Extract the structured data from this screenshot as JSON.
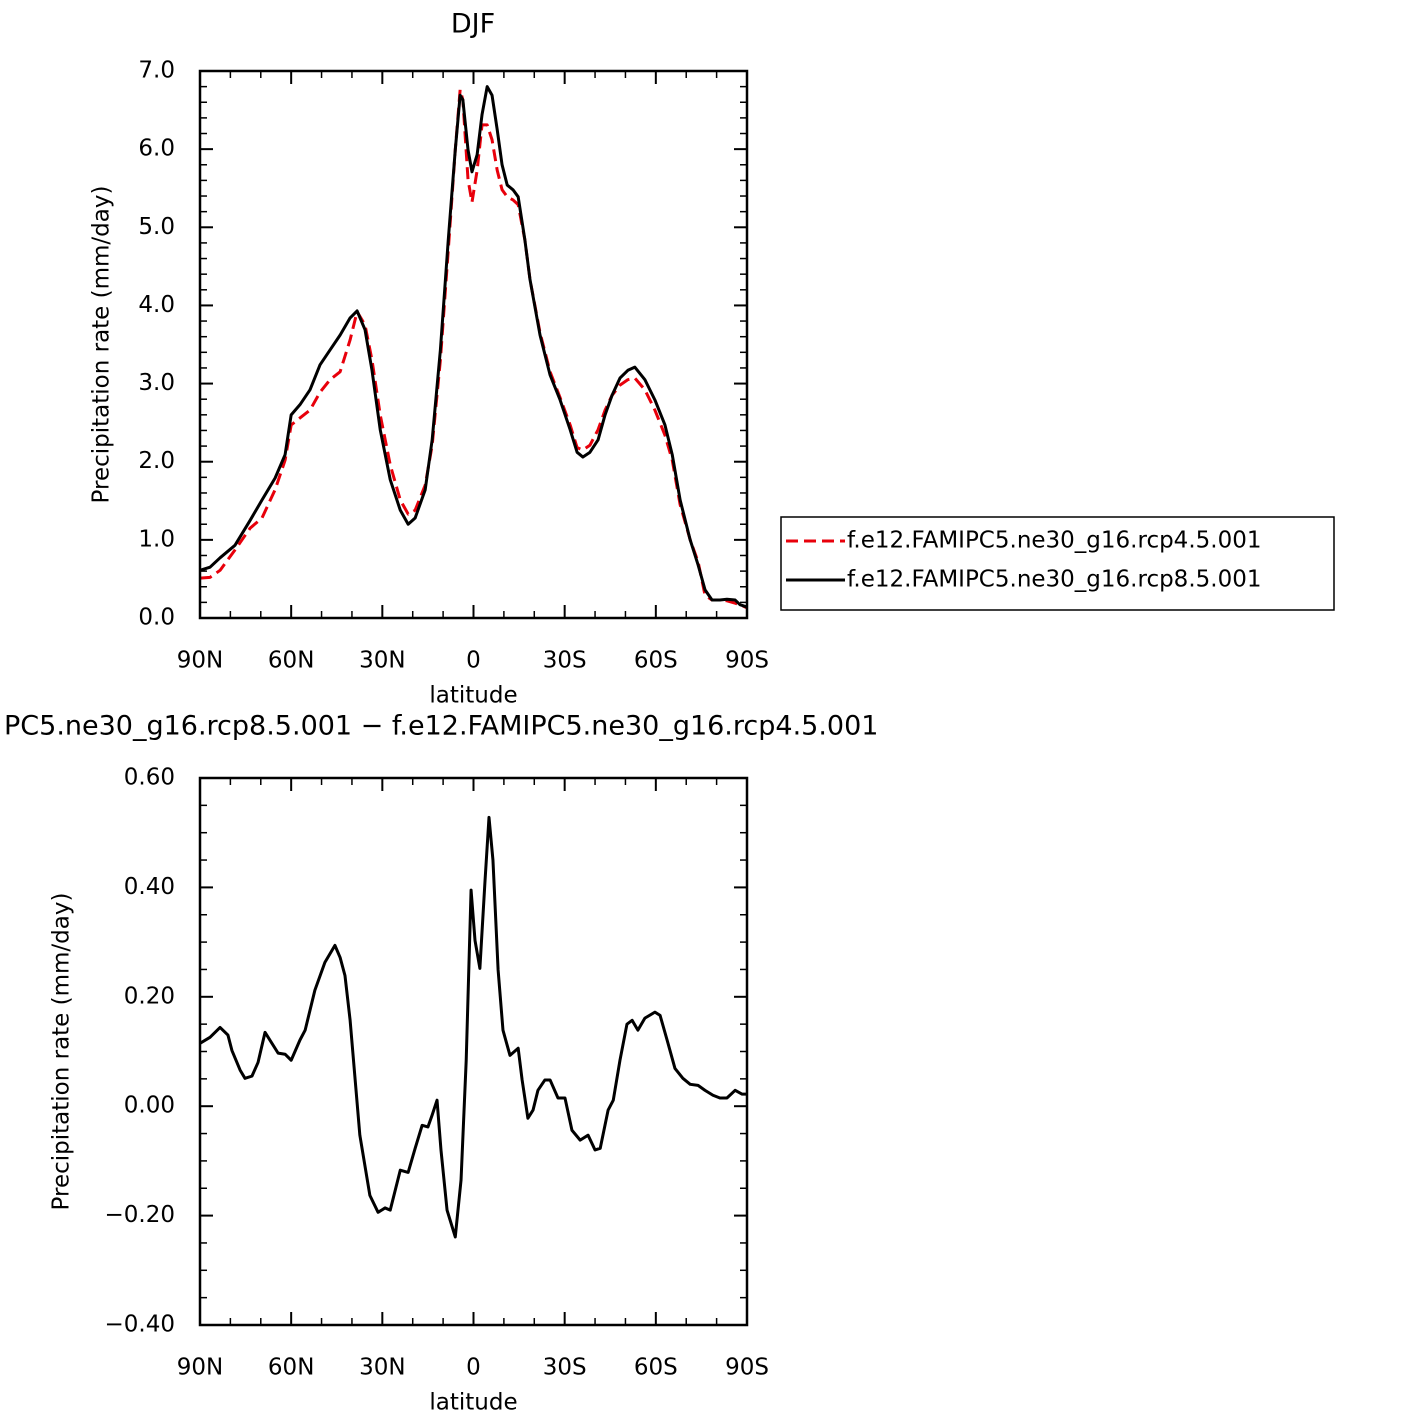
{
  "chart_data": [
    {
      "type": "line",
      "title": "DJF",
      "xlabel": "latitude",
      "ylabel": "Precipitation rate (mm/day)",
      "x": [
        90,
        86.7,
        83.4,
        78.5,
        73.5,
        69.6,
        65.3,
        62.0,
        60.0,
        57.1,
        53.8,
        50.5,
        47.2,
        43.9,
        40.6,
        38.3,
        35.7,
        33.4,
        30.7,
        27.4,
        24.1,
        21.5,
        19.2,
        15.9,
        13.6,
        10.9,
        8.3,
        6.0,
        4.4,
        3.5,
        1.8,
        0.5,
        -1.2,
        -2.8,
        -4.5,
        -6.1,
        -7.8,
        -9.4,
        -11.1,
        -13.0,
        -14.7,
        -16.9,
        -18.6,
        -21.9,
        -25.2,
        -28.5,
        -31.8,
        -34.1,
        -36.0,
        -38.3,
        -41.0,
        -43.3,
        -45.6,
        -48.2,
        -50.8,
        -53.1,
        -56.4,
        -59.7,
        -63.0,
        -65.4,
        -68.0,
        -71.3,
        -73.9,
        -76.2,
        -78.5,
        -81.1,
        -83.4,
        -86.1,
        -87.7,
        -90
      ],
      "series": [
        {
          "name": "f.e12.FAMIPC5.ne30_g16.rcp4.5.001",
          "color": "#e8000b",
          "linestyle": "dashed",
          "values": [
            0.51,
            0.52,
            0.61,
            0.87,
            1.15,
            1.28,
            1.64,
            2.02,
            2.47,
            2.56,
            2.66,
            2.89,
            3.05,
            3.15,
            3.56,
            3.92,
            3.75,
            3.3,
            2.6,
            1.96,
            1.51,
            1.33,
            1.38,
            1.7,
            2.21,
            3.3,
            4.71,
            5.99,
            6.76,
            6.63,
            5.61,
            5.32,
            5.73,
            6.31,
            6.31,
            6.12,
            5.73,
            5.48,
            5.39,
            5.35,
            5.29,
            4.84,
            4.33,
            3.65,
            3.15,
            2.82,
            2.47,
            2.18,
            2.15,
            2.21,
            2.41,
            2.66,
            2.85,
            2.98,
            3.05,
            3.07,
            2.92,
            2.66,
            2.34,
            2.02,
            1.45,
            1.0,
            0.72,
            0.29,
            0.23,
            0.23,
            0.22,
            0.19,
            0.17,
            0.13
          ]
        },
        {
          "name": "f.e12.FAMIPC5.ne30_g16.rcp8.5.001",
          "color": "#000000",
          "linestyle": "solid",
          "values": [
            0.61,
            0.65,
            0.77,
            0.93,
            1.25,
            1.51,
            1.79,
            2.09,
            2.6,
            2.73,
            2.92,
            3.24,
            3.43,
            3.62,
            3.84,
            3.93,
            3.69,
            3.17,
            2.41,
            1.77,
            1.38,
            1.2,
            1.28,
            1.64,
            2.28,
            3.43,
            4.84,
            5.99,
            6.69,
            6.63,
            5.99,
            5.71,
            5.93,
            6.44,
            6.8,
            6.69,
            6.25,
            5.8,
            5.54,
            5.48,
            5.39,
            4.84,
            4.33,
            3.62,
            3.11,
            2.79,
            2.41,
            2.12,
            2.06,
            2.12,
            2.28,
            2.6,
            2.85,
            3.07,
            3.17,
            3.21,
            3.05,
            2.79,
            2.47,
            2.09,
            1.51,
            1.0,
            0.68,
            0.36,
            0.23,
            0.23,
            0.24,
            0.23,
            0.17,
            0.14
          ]
        }
      ],
      "legend": "right",
      "xlim": [
        90,
        -90
      ],
      "xticks": [
        {
          "value": 90,
          "label": "90N"
        },
        {
          "value": 60,
          "label": "60N"
        },
        {
          "value": 30,
          "label": "30N"
        },
        0,
        {
          "value": -30,
          "label": "30S"
        },
        {
          "value": -60,
          "label": "60S"
        },
        {
          "value": -90,
          "label": "90S"
        }
      ],
      "xminorticks": [
        80,
        70,
        50,
        40,
        20,
        10,
        -10,
        -20,
        -40,
        -50,
        -70,
        -80
      ],
      "ylim": [
        0,
        7
      ],
      "yticks": [
        {
          "value": 0,
          "label": "0.0"
        },
        {
          "value": 1,
          "label": "1.0"
        },
        {
          "value": 2,
          "label": "2.0"
        },
        {
          "value": 3,
          "label": "3.0"
        },
        {
          "value": 4,
          "label": "4.0"
        },
        {
          "value": 5,
          "label": "5.0"
        },
        {
          "value": 6,
          "label": "6.0"
        },
        {
          "value": 7,
          "label": "7.0"
        }
      ],
      "yminorticks": [
        0.2,
        0.4,
        0.6,
        0.8,
        1.2,
        1.4,
        1.6,
        1.8,
        2.2,
        2.4,
        2.6,
        2.8,
        3.2,
        3.4,
        3.6,
        3.8,
        4.2,
        4.4,
        4.6,
        4.8,
        5.2,
        5.4,
        5.6,
        5.8,
        6.2,
        6.4,
        6.6,
        6.8
      ]
    },
    {
      "type": "line",
      "title": "PC5.ne30_g16.rcp8.5.001 − f.e12.FAMIPC5.ne30_g16.rcp4.5.001",
      "xlabel": "latitude",
      "ylabel": "Precipitation rate (mm/day)",
      "x": [
        90,
        86.7,
        83.4,
        80.8,
        79.5,
        76.8,
        75.2,
        72.9,
        70.9,
        68.6,
        67.0,
        64.3,
        62.0,
        60.0,
        57.1,
        55.4,
        52.2,
        48.9,
        45.6,
        43.9,
        42.3,
        40.6,
        37.4,
        34.1,
        31.4,
        29.1,
        27.4,
        24.1,
        21.5,
        19.2,
        16.9,
        15.0,
        13.6,
        12.0,
        10.7,
        8.7,
        6.0,
        4.1,
        2.4,
        0.8,
        -0.5,
        -2.1,
        -3.8,
        -5.1,
        -6.4,
        -8.1,
        -9.7,
        -12.0,
        -14.7,
        -16.0,
        -17.9,
        -19.6,
        -21.2,
        -23.5,
        -25.2,
        -27.8,
        -30.1,
        -32.4,
        -35.1,
        -37.7,
        -40.0,
        -41.7,
        -44.3,
        -46.0,
        -48.2,
        -50.5,
        -52.2,
        -54.1,
        -56.4,
        -59.7,
        -61.4,
        -63.7,
        -66.3,
        -68.9,
        -71.3,
        -73.9,
        -76.2,
        -78.8,
        -81.1,
        -83.4,
        -86.1,
        -88.4,
        -90
      ],
      "series": [
        {
          "color": "#000000",
          "linestyle": "solid",
          "values": [
            0.115,
            0.126,
            0.144,
            0.13,
            0.102,
            0.066,
            0.051,
            0.055,
            0.08,
            0.135,
            0.121,
            0.097,
            0.095,
            0.084,
            0.121,
            0.139,
            0.212,
            0.263,
            0.294,
            0.272,
            0.239,
            0.157,
            -0.053,
            -0.163,
            -0.194,
            -0.186,
            -0.19,
            -0.117,
            -0.121,
            -0.077,
            -0.035,
            -0.038,
            -0.016,
            0.011,
            -0.08,
            -0.19,
            -0.239,
            -0.135,
            0.084,
            0.395,
            0.303,
            0.252,
            0.413,
            0.528,
            0.45,
            0.249,
            0.139,
            0.093,
            0.106,
            0.048,
            -0.022,
            -0.007,
            0.029,
            0.048,
            0.048,
            0.015,
            0.015,
            -0.044,
            -0.062,
            -0.053,
            -0.08,
            -0.077,
            -0.007,
            0.011,
            0.084,
            0.15,
            0.157,
            0.139,
            0.161,
            0.172,
            0.166,
            0.121,
            0.069,
            0.051,
            0.04,
            0.038,
            0.029,
            0.02,
            0.015,
            0.015,
            0.029,
            0.022,
            0.022
          ]
        }
      ],
      "xlim": [
        90,
        -90
      ],
      "xticks": [
        {
          "value": 90,
          "label": "90N"
        },
        {
          "value": 60,
          "label": "60N"
        },
        {
          "value": 30,
          "label": "30N"
        },
        0,
        {
          "value": -30,
          "label": "30S"
        },
        {
          "value": -60,
          "label": "60S"
        },
        {
          "value": -90,
          "label": "90S"
        }
      ],
      "xminorticks": [
        80,
        70,
        50,
        40,
        20,
        10,
        -10,
        -20,
        -40,
        -50,
        -70,
        -80
      ],
      "ylim": [
        -0.4,
        0.6
      ],
      "yticks": [
        {
          "value": -0.4,
          "label": "−0.40"
        },
        {
          "value": -0.2,
          "label": "−0.20"
        },
        {
          "value": 0,
          "label": "0.00"
        },
        {
          "value": 0.2,
          "label": "0.20"
        },
        {
          "value": 0.4,
          "label": "0.40"
        },
        {
          "value": 0.6,
          "label": "0.60"
        }
      ],
      "yminorticks": [
        -0.35,
        -0.3,
        -0.25,
        -0.15,
        -0.1,
        -0.05,
        0.05,
        0.1,
        0.15,
        0.25,
        0.3,
        0.35,
        0.45,
        0.5,
        0.55
      ]
    }
  ]
}
